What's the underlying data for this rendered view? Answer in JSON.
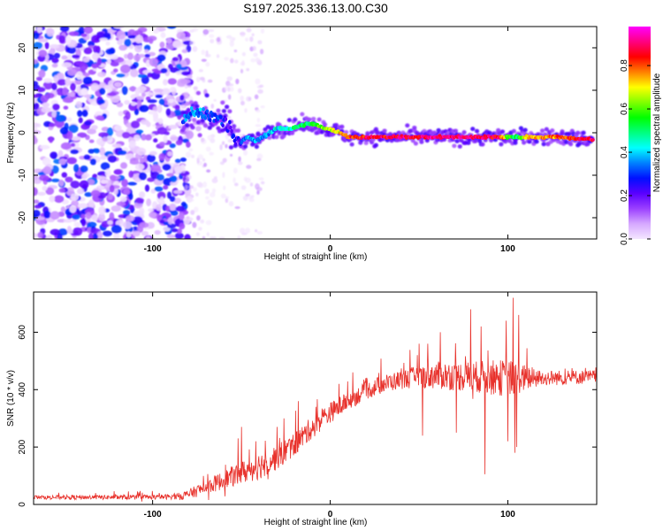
{
  "title": "S197.2025.336.13.00.C30",
  "chart_data": [
    {
      "type": "heatmap",
      "name": "spectrogram",
      "xlabel": "Height of straight line (km)",
      "ylabel": "Frequency (Hz)",
      "xlim": [
        -167,
        150
      ],
      "ylim": [
        -25,
        25
      ],
      "xticks": [
        -100,
        0,
        100
      ],
      "xtick_labels": [
        "-100",
        "0",
        "100"
      ],
      "yticks": [
        -20,
        -10,
        0,
        10,
        20
      ],
      "ytick_labels": [
        "-20",
        "-10",
        "0",
        "10",
        "20"
      ],
      "colorbar": {
        "label": "Normalized spectral amplitude",
        "range": [
          0,
          0.98
        ],
        "ticks": [
          0.0,
          0.2,
          0.4,
          0.6,
          0.8
        ],
        "tick_labels": [
          "0.0",
          "0.2",
          "0.4",
          "0.6",
          "0.8"
        ],
        "colors": [
          "#f4e6ff",
          "#d6a8ff",
          "#9b40ff",
          "#5a00ff",
          "#0010ff",
          "#0080ff",
          "#00ffff",
          "#00ff80",
          "#00ff00",
          "#80ff00",
          "#ffff00",
          "#ff8000",
          "#ff0000",
          "#ff0080",
          "#ff00ff"
        ]
      },
      "noise_region_x": [
        -167,
        -83
      ],
      "ridge": {
        "x": [
          -83,
          -78,
          -74,
          -70,
          -66,
          -62,
          -58,
          -54,
          -50,
          -46,
          -42,
          -38,
          -34,
          -30,
          -26,
          -22,
          -18,
          -14,
          -10,
          -6,
          -2,
          2,
          6,
          10,
          20,
          40,
          60,
          80,
          95,
          100,
          105,
          110,
          120,
          130,
          140,
          148
        ],
        "freq": [
          3,
          5,
          5,
          4,
          4,
          3,
          2,
          -1,
          -2,
          -1,
          -2,
          -1,
          0,
          1,
          1,
          1,
          1.5,
          2,
          2,
          1.5,
          1,
          0.5,
          0,
          -1,
          -1,
          -1,
          -1,
          -1,
          -1,
          -1,
          -1,
          -1,
          -1,
          -1,
          -1.5,
          -1.5
        ],
        "amp": [
          0.3,
          0.35,
          0.35,
          0.3,
          0.3,
          0.3,
          0.25,
          0.25,
          0.3,
          0.35,
          0.35,
          0.35,
          0.4,
          0.4,
          0.45,
          0.45,
          0.5,
          0.5,
          0.55,
          0.6,
          0.65,
          0.7,
          0.75,
          0.8,
          0.85,
          0.88,
          0.9,
          0.9,
          0.88,
          0.6,
          0.5,
          0.7,
          0.75,
          0.8,
          0.85,
          0.9
        ]
      }
    },
    {
      "type": "line",
      "name": "snr",
      "xlabel": "Height of straight line (km)",
      "ylabel": "SNR (10 * v/v)",
      "xlim": [
        -167,
        150
      ],
      "ylim": [
        0,
        740
      ],
      "xticks": [
        -100,
        0,
        100
      ],
      "xtick_labels": [
        "-100",
        "0",
        "100"
      ],
      "yticks": [
        0,
        200,
        400,
        600
      ],
      "ytick_labels": [
        "0",
        "200",
        "400",
        "600"
      ],
      "color": "#e8322c",
      "trend": {
        "x": [
          -167,
          -100,
          -85,
          -80,
          -70,
          -60,
          -50,
          -40,
          -30,
          -20,
          -10,
          0,
          10,
          20,
          30,
          40,
          50,
          60,
          80,
          100,
          120,
          150
        ],
        "y": [
          25,
          25,
          28,
          35,
          60,
          85,
          110,
          135,
          165,
          210,
          270,
          320,
          360,
          395,
          420,
          435,
          445,
          450,
          445,
          440,
          440,
          445
        ]
      },
      "noise_amplitude": {
        "x": [
          -167,
          -90,
          -75,
          -60,
          -40,
          -20,
          0,
          20,
          40,
          60,
          80,
          100,
          120,
          150
        ],
        "amp": [
          12,
          15,
          35,
          55,
          80,
          70,
          60,
          50,
          55,
          80,
          90,
          110,
          45,
          40
        ]
      },
      "spikes": [
        {
          "x": -52,
          "y": 230
        },
        {
          "x": -50,
          "y": 270
        },
        {
          "x": -42,
          "y": 220
        },
        {
          "x": -30,
          "y": 270
        },
        {
          "x": -26,
          "y": 300
        },
        {
          "x": -18,
          "y": 360
        },
        {
          "x": -8,
          "y": 340
        },
        {
          "x": 5,
          "y": 420
        },
        {
          "x": 20,
          "y": 440
        },
        {
          "x": 50,
          "y": 560
        },
        {
          "x": 55,
          "y": 560
        },
        {
          "x": 52,
          "y": 240
        },
        {
          "x": 62,
          "y": 600
        },
        {
          "x": 71,
          "y": 250
        },
        {
          "x": 79,
          "y": 680
        },
        {
          "x": 85,
          "y": 620
        },
        {
          "x": 87,
          "y": 105
        },
        {
          "x": 99,
          "y": 640
        },
        {
          "x": 100,
          "y": 220
        },
        {
          "x": 103,
          "y": 720
        },
        {
          "x": 104,
          "y": 180
        },
        {
          "x": 106,
          "y": 660
        },
        {
          "x": 105,
          "y": 200
        }
      ]
    }
  ]
}
